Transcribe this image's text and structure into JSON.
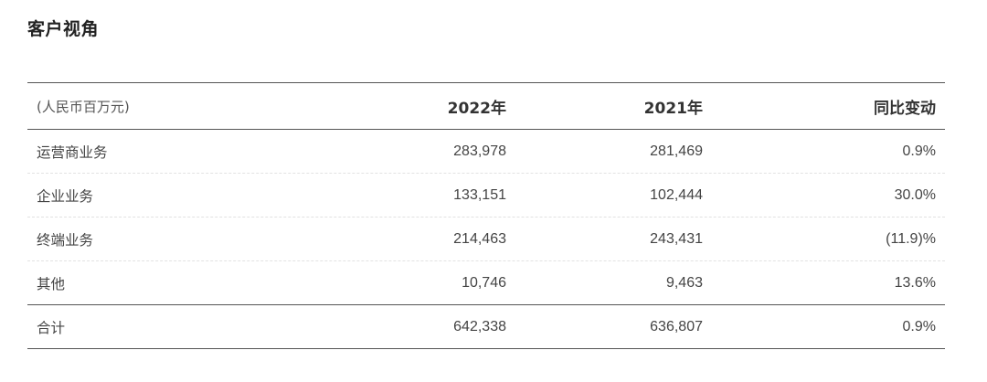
{
  "title": "客户视角",
  "table": {
    "unit_label": "(人民币百万元)",
    "columns": [
      "2022年",
      "2021年",
      "同比变动"
    ],
    "rows": [
      {
        "label": "运营商业务",
        "y2022": "283,978",
        "y2021": "281,469",
        "yoy": "0.9%"
      },
      {
        "label": "企业业务",
        "y2022": "133,151",
        "y2021": "102,444",
        "yoy": "30.0%"
      },
      {
        "label": "终端业务",
        "y2022": "214,463",
        "y2021": "243,431",
        "yoy": "(11.9)%"
      },
      {
        "label": "其他",
        "y2022": "10,746",
        "y2021": "9,463",
        "yoy": "13.6%"
      },
      {
        "label": "合计",
        "y2022": "642,338",
        "y2021": "636,807",
        "yoy": "0.9%"
      }
    ]
  }
}
